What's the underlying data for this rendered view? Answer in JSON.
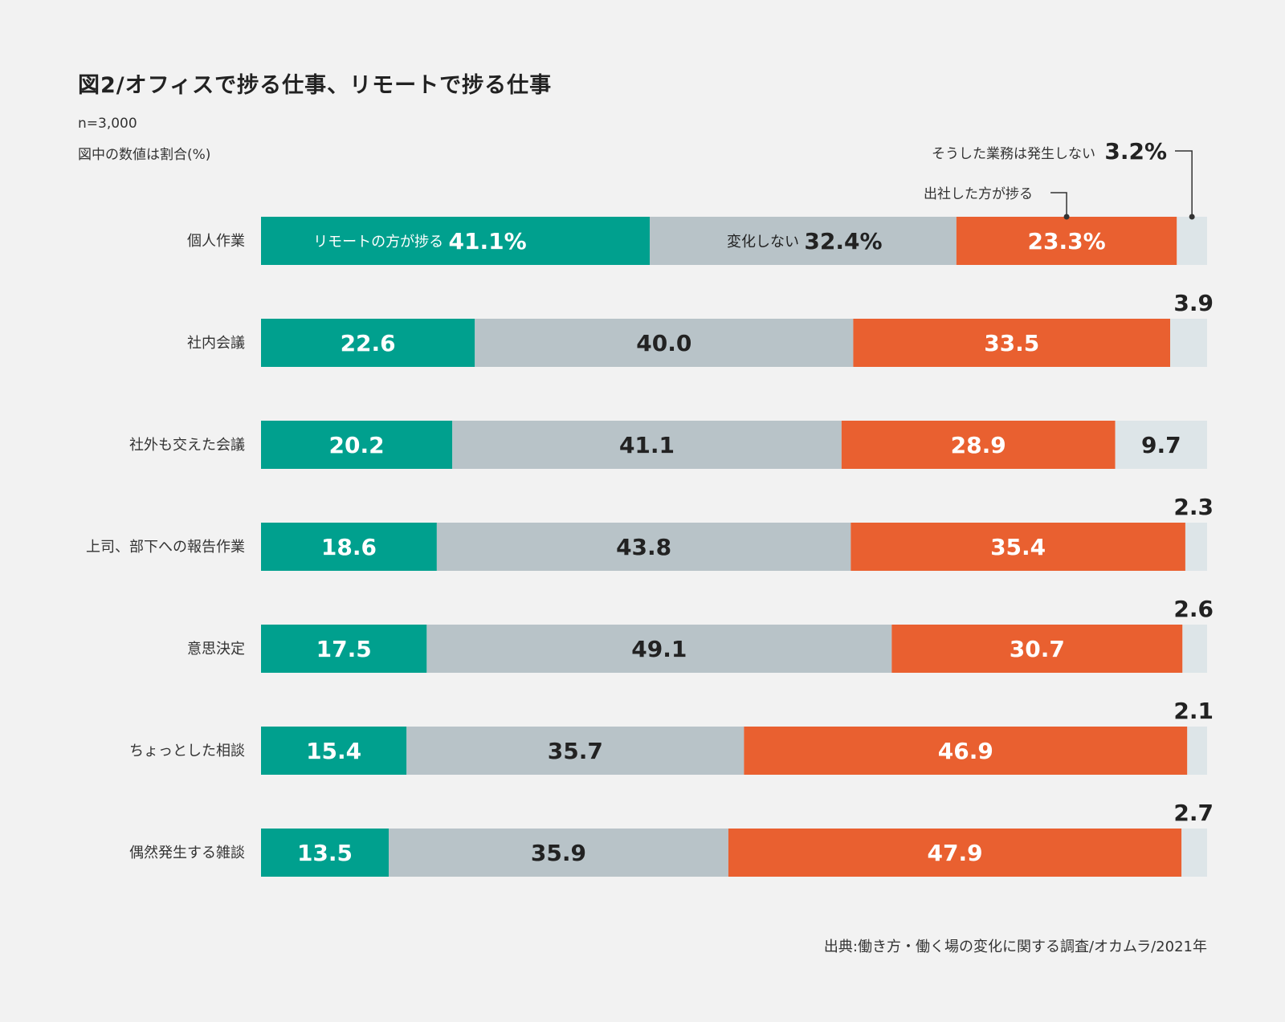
{
  "title": "図2/オフィスで捗る仕事、リモートで捗る仕事",
  "notes": {
    "n": "n=3,000",
    "unit": "図中の数値は割合(%)"
  },
  "legend": {
    "remote": {
      "label": "リモートの方が捗る",
      "color": "#00a08e"
    },
    "nochange": {
      "label": "変化しない",
      "color": "#b8c3c8"
    },
    "office": {
      "label": "出社した方が捗る",
      "color": "#e96030"
    },
    "none": {
      "label": "そうした業務は発生しない",
      "color": "#dde5e8"
    }
  },
  "source": "出典:働き方・働く場の変化に関する調査/オカムラ/2021年",
  "chart_data": {
    "type": "bar",
    "stacked": true,
    "orientation": "horizontal",
    "title": "図2/オフィスで捗る仕事、リモートで捗る仕事",
    "categories": [
      "個人作業",
      "社内会議",
      "社外も交えた会議",
      "上司、部下への報告作業",
      "意思決定",
      "ちょっとした相談",
      "偶然発生する雑談"
    ],
    "series": [
      {
        "name": "リモートの方が捗る",
        "values": [
          41.1,
          22.6,
          20.2,
          18.6,
          17.5,
          15.4,
          13.5
        ]
      },
      {
        "name": "変化しない",
        "values": [
          32.4,
          40.0,
          41.1,
          43.8,
          49.1,
          35.7,
          35.9
        ]
      },
      {
        "name": "出社した方が捗る",
        "values": [
          23.3,
          33.5,
          28.9,
          35.4,
          30.7,
          46.9,
          47.9
        ]
      },
      {
        "name": "そうした業務は発生しない",
        "values": [
          3.2,
          3.9,
          9.7,
          2.3,
          2.6,
          2.1,
          2.7
        ]
      }
    ],
    "label_texts": [
      [
        "41.1%",
        "32.4%",
        "23.3%",
        "3.2%"
      ],
      [
        "22.6",
        "40.0",
        "33.5",
        "3.9"
      ],
      [
        "20.2",
        "41.1",
        "28.9",
        "9.7"
      ],
      [
        "18.6",
        "43.8",
        "35.4",
        "2.3"
      ],
      [
        "17.5",
        "49.1",
        "30.7",
        "2.6"
      ],
      [
        "15.4",
        "35.7",
        "46.9",
        "2.1"
      ],
      [
        "13.5",
        "35.9",
        "47.9",
        "2.7"
      ]
    ],
    "xlim": [
      0,
      100
    ],
    "legend": "inline"
  }
}
